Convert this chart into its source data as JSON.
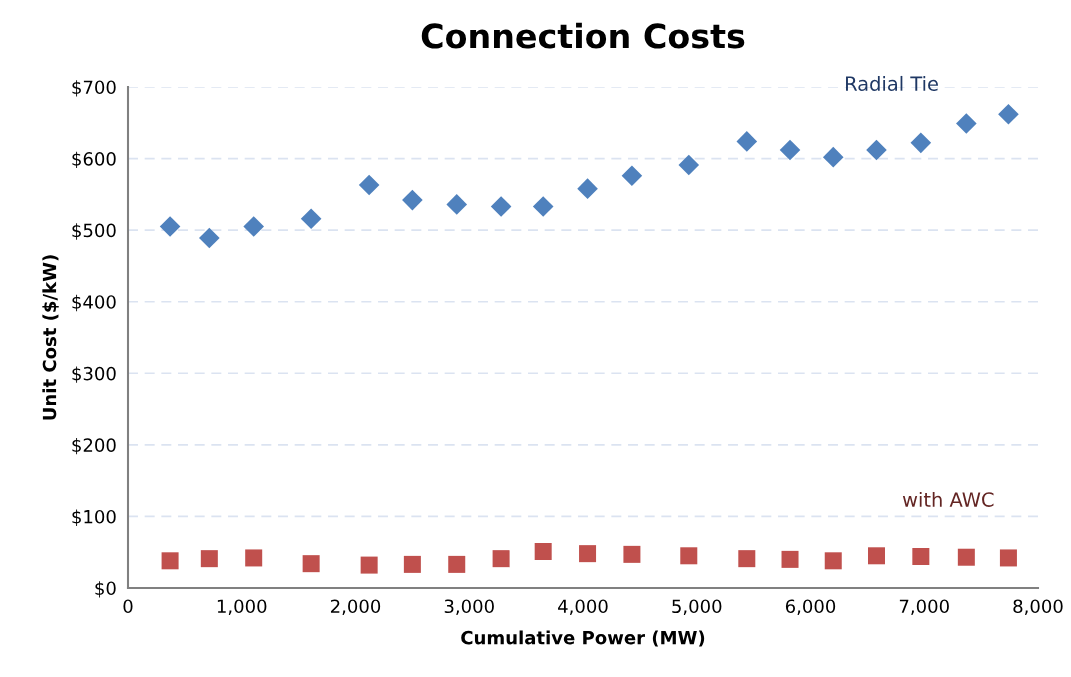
{
  "chart_data": {
    "type": "scatter",
    "title": "Connection Costs",
    "xlabel": "Cumulative Power (MW)",
    "ylabel": "Unit Cost ($/kW)",
    "x": [
      370,
      715,
      1105,
      1610,
      2120,
      2500,
      2890,
      3280,
      3650,
      4040,
      4430,
      4930,
      5440,
      5820,
      6200,
      6580,
      6970,
      7370,
      7740
    ],
    "series": [
      {
        "name": "Radial Tie",
        "color": "#4f81bd",
        "marker": "diamond",
        "values": [
          505,
          489,
          505,
          516,
          563,
          542,
          536,
          533,
          533,
          558,
          576,
          591,
          624,
          612,
          602,
          612,
          622,
          649,
          662
        ]
      },
      {
        "name": "with AWC",
        "color": "#c0504d",
        "marker": "square",
        "values": [
          38,
          41,
          42,
          34,
          32,
          33,
          33,
          41,
          51,
          48,
          47,
          45,
          41,
          40,
          38,
          45,
          44,
          43,
          42
        ]
      }
    ],
    "xlim": [
      0,
      8000
    ],
    "xticks": [
      0,
      {
        "value": 1000,
        "label": "1,000"
      },
      {
        "value": 2000,
        "label": "2,000"
      },
      {
        "value": 3000,
        "label": "3,000"
      },
      {
        "value": 4000,
        "label": "4,000"
      },
      {
        "value": 5000,
        "label": "5,000"
      },
      {
        "value": 6000,
        "label": "6,000"
      },
      {
        "value": 7000,
        "label": "7,000"
      },
      {
        "value": 8000,
        "label": "8,000"
      }
    ],
    "ylim": [
      0,
      700
    ],
    "yticks": [
      {
        "value": 0,
        "label": "$0"
      },
      {
        "value": 100,
        "label": "$100"
      },
      {
        "value": 200,
        "label": "$200"
      },
      {
        "value": 300,
        "label": "$300"
      },
      {
        "value": 400,
        "label": "$400"
      },
      {
        "value": 500,
        "label": "$500"
      },
      {
        "value": 600,
        "label": "$600"
      },
      {
        "value": 700,
        "label": "$700"
      }
    ],
    "grid": "y",
    "legend": false
  }
}
